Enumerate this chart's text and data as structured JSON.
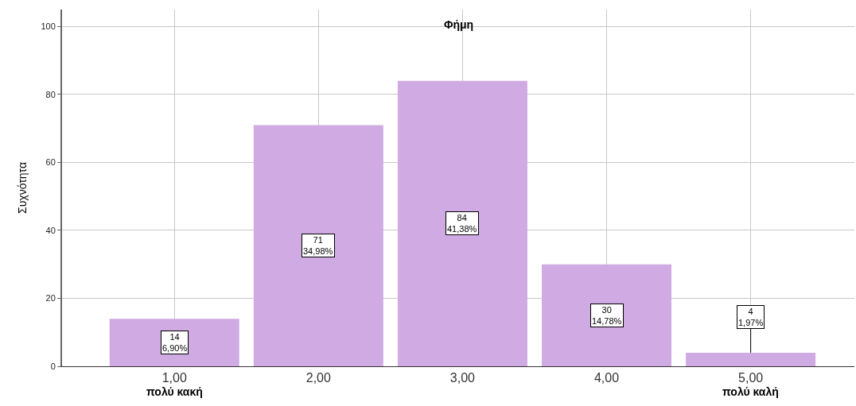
{
  "chart_data": {
    "type": "bar",
    "title": "Φήμη",
    "ylabel": "Συχνότητα",
    "categories": [
      "1,00",
      "2,00",
      "3,00",
      "4,00",
      "5,00"
    ],
    "values": [
      14,
      71,
      84,
      30,
      4
    ],
    "value_labels": [
      "14\n6,90%",
      "71\n34,98%",
      "84\n41,38%",
      "30\n14,78%",
      "4\n1,97%"
    ],
    "color": "#cfaae3",
    "ylim": [
      0,
      105
    ],
    "yticks": [
      0,
      20,
      40,
      60,
      80,
      100
    ],
    "grid": true,
    "annotations": [
      "πολύ κακή",
      "πολύ καλή"
    ]
  }
}
